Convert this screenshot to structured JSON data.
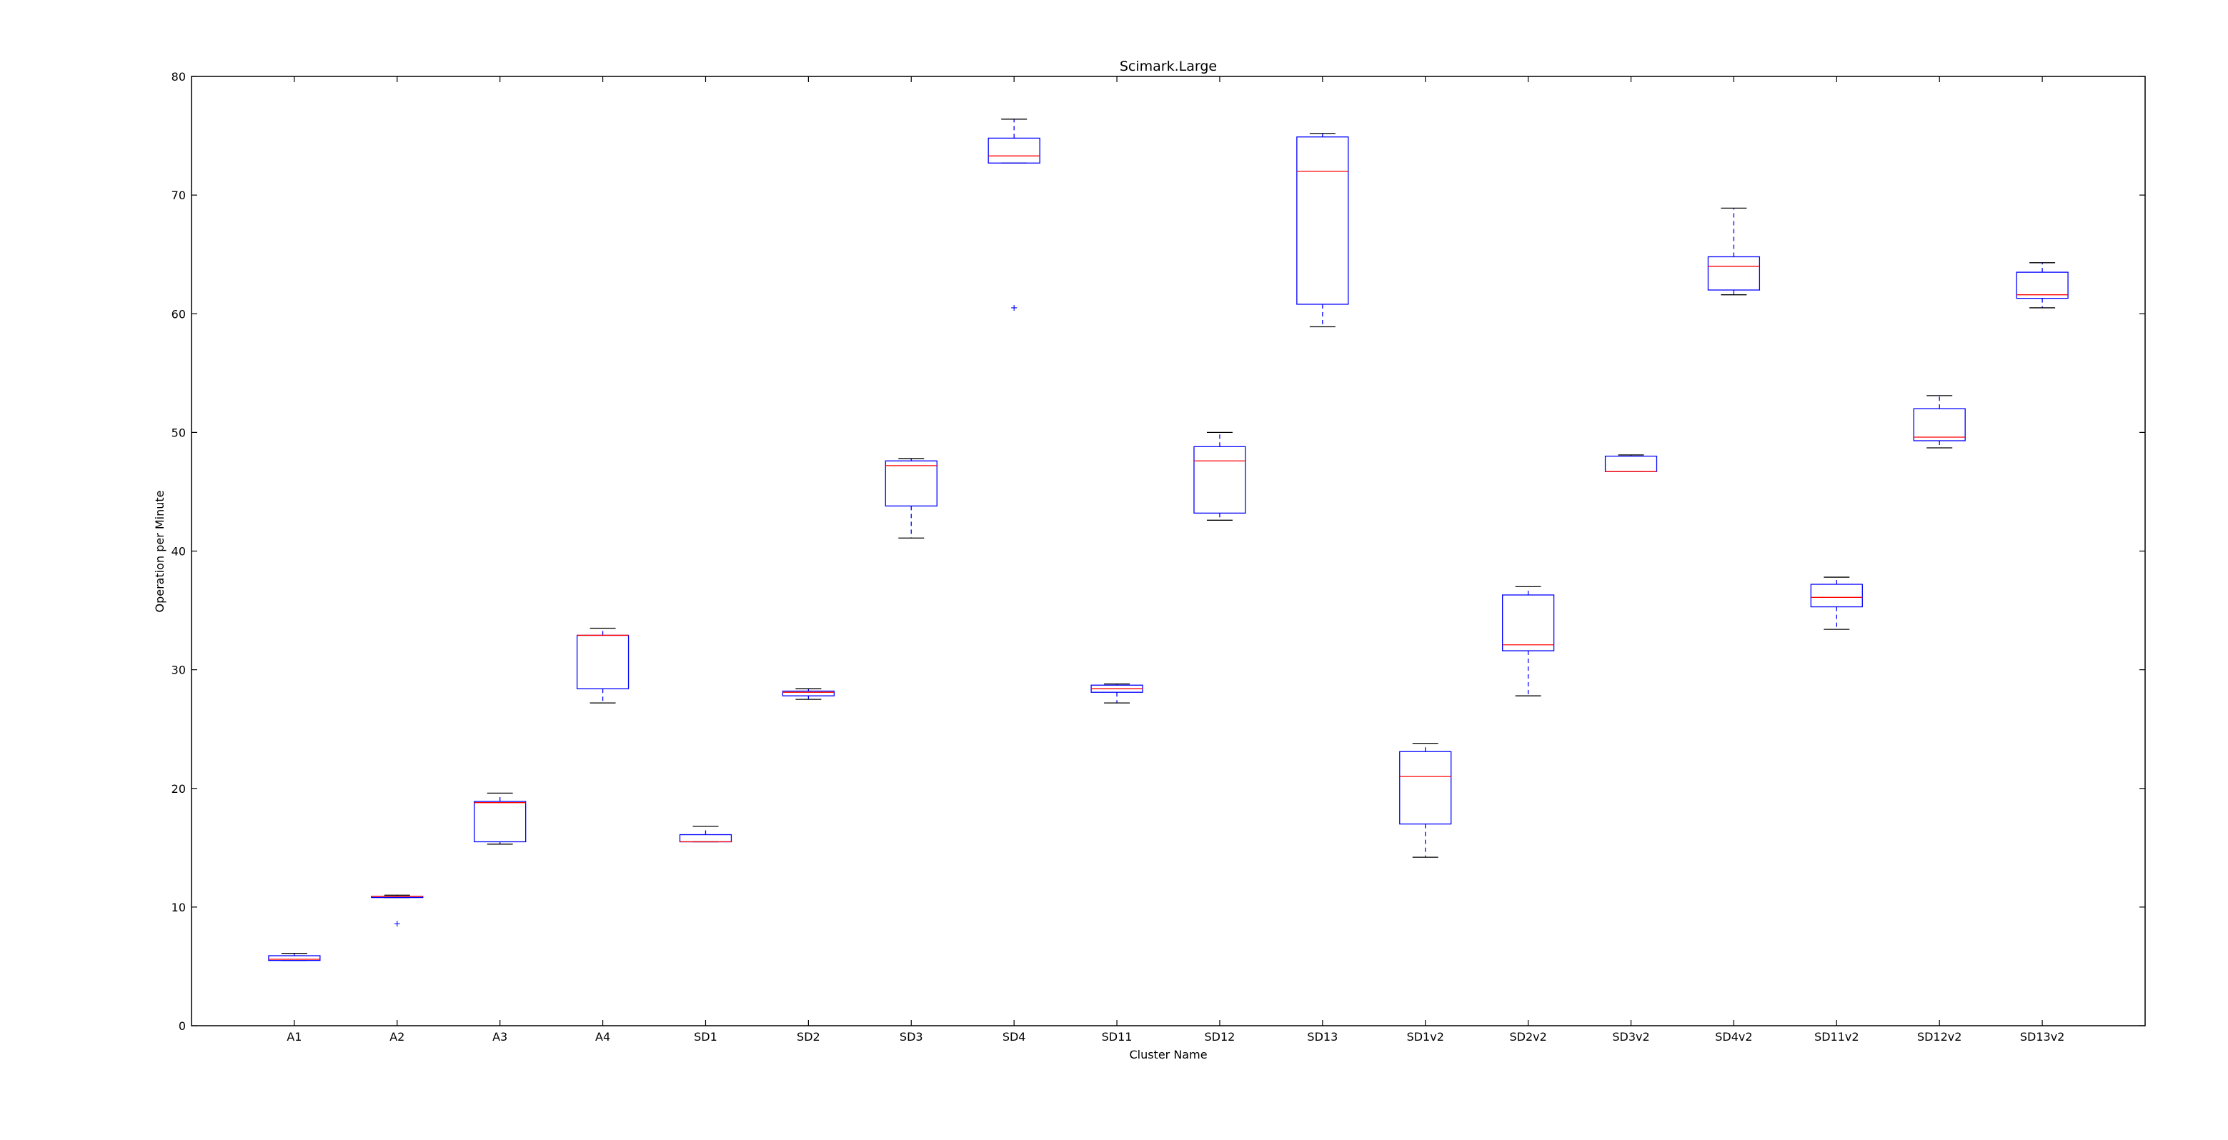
{
  "chart_data": {
    "type": "box",
    "title": "Scimark.Large",
    "xlabel": "Cluster Name",
    "ylabel": "Operation per Minute",
    "ylim": [
      0,
      80
    ],
    "yticks": [
      0,
      10,
      20,
      30,
      40,
      50,
      60,
      70,
      80
    ],
    "grid": false,
    "colors": {
      "box": "#0000ff",
      "median": "#ff0000",
      "whisker": "#0000ff",
      "cap": "#000000",
      "flier": "#0000ff"
    },
    "boxes": [
      {
        "label": "A1",
        "whislo": 5.5,
        "q1": 5.5,
        "med": 5.6,
        "q3": 5.9,
        "whishi": 6.1,
        "fliers": []
      },
      {
        "label": "A2",
        "whislo": 10.8,
        "q1": 10.8,
        "med": 10.9,
        "q3": 10.9,
        "whishi": 11.0,
        "fliers": [
          8.6
        ]
      },
      {
        "label": "A3",
        "whislo": 15.3,
        "q1": 15.5,
        "med": 18.8,
        "q3": 18.9,
        "whishi": 19.6,
        "fliers": []
      },
      {
        "label": "A4",
        "whislo": 27.2,
        "q1": 28.4,
        "med": 32.9,
        "q3": 32.9,
        "whishi": 33.5,
        "fliers": []
      },
      {
        "label": "SD1",
        "whislo": 15.5,
        "q1": 15.5,
        "med": 15.5,
        "q3": 16.1,
        "whishi": 16.8,
        "fliers": []
      },
      {
        "label": "SD2",
        "whislo": 27.5,
        "q1": 27.8,
        "med": 28.1,
        "q3": 28.2,
        "whishi": 28.4,
        "fliers": []
      },
      {
        "label": "SD3",
        "whislo": 41.1,
        "q1": 43.8,
        "med": 47.2,
        "q3": 47.6,
        "whishi": 47.8,
        "fliers": []
      },
      {
        "label": "SD4",
        "whislo": 72.7,
        "q1": 72.7,
        "med": 73.3,
        "q3": 74.8,
        "whishi": 76.4,
        "fliers": [
          60.5
        ]
      },
      {
        "label": "SD11",
        "whislo": 27.2,
        "q1": 28.1,
        "med": 28.4,
        "q3": 28.7,
        "whishi": 28.8,
        "fliers": []
      },
      {
        "label": "SD12",
        "whislo": 42.6,
        "q1": 43.2,
        "med": 47.6,
        "q3": 48.8,
        "whishi": 50.0,
        "fliers": []
      },
      {
        "label": "SD13",
        "whislo": 58.9,
        "q1": 60.8,
        "med": 72.0,
        "q3": 74.9,
        "whishi": 75.2,
        "fliers": []
      },
      {
        "label": "SD1v2",
        "whislo": 14.2,
        "q1": 17.0,
        "med": 21.0,
        "q3": 23.1,
        "whishi": 23.8,
        "fliers": []
      },
      {
        "label": "SD2v2",
        "whislo": 27.8,
        "q1": 31.6,
        "med": 32.1,
        "q3": 36.3,
        "whishi": 37.0,
        "fliers": []
      },
      {
        "label": "SD3v2",
        "whislo": 46.7,
        "q1": 46.7,
        "med": 46.7,
        "q3": 48.0,
        "whishi": 48.1,
        "fliers": []
      },
      {
        "label": "SD4v2",
        "whislo": 61.6,
        "q1": 62.0,
        "med": 64.0,
        "q3": 64.8,
        "whishi": 68.9,
        "fliers": []
      },
      {
        "label": "SD11v2",
        "whislo": 33.4,
        "q1": 35.3,
        "med": 36.1,
        "q3": 37.2,
        "whishi": 37.8,
        "fliers": []
      },
      {
        "label": "SD12v2",
        "whislo": 48.7,
        "q1": 49.3,
        "med": 49.6,
        "q3": 52.0,
        "whishi": 53.1,
        "fliers": []
      },
      {
        "label": "SD13v2",
        "whislo": 60.5,
        "q1": 61.3,
        "med": 61.6,
        "q3": 63.5,
        "whishi": 64.3,
        "fliers": []
      }
    ]
  }
}
